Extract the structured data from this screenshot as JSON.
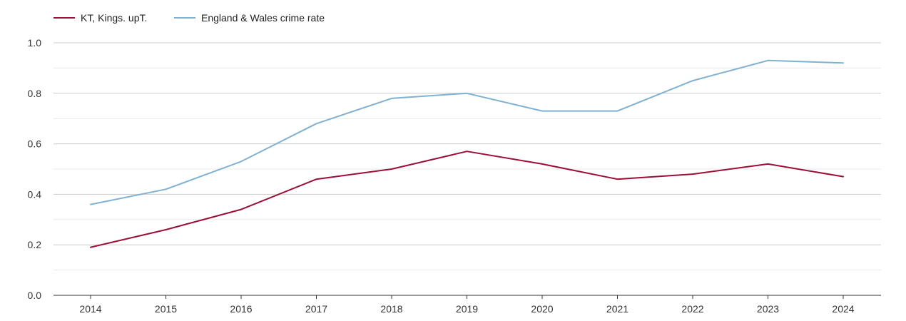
{
  "chart_data": {
    "type": "line",
    "title": "",
    "xlabel": "",
    "ylabel": "",
    "categories": [
      "2014",
      "2015",
      "2016",
      "2017",
      "2018",
      "2019",
      "2020",
      "2021",
      "2022",
      "2023",
      "2024"
    ],
    "series": [
      {
        "name": "KT, Kings. upT.",
        "color": "#9b0f36",
        "values": [
          0.19,
          0.26,
          0.34,
          0.46,
          0.5,
          0.57,
          0.52,
          0.46,
          0.48,
          0.52,
          0.47
        ]
      },
      {
        "name": "England & Wales crime rate",
        "color": "#7fb1d3",
        "values": [
          0.36,
          0.42,
          0.53,
          0.68,
          0.78,
          0.8,
          0.73,
          0.73,
          0.85,
          0.93,
          0.92
        ]
      }
    ],
    "ylim": [
      0,
      1.0
    ],
    "yticks": [
      "0.0",
      "0.2",
      "0.4",
      "0.6",
      "0.8",
      "1.0"
    ],
    "yminor_ticks": [
      0.1,
      0.3,
      0.5,
      0.7,
      0.9
    ],
    "grid": true,
    "legend_position": "top-left"
  }
}
